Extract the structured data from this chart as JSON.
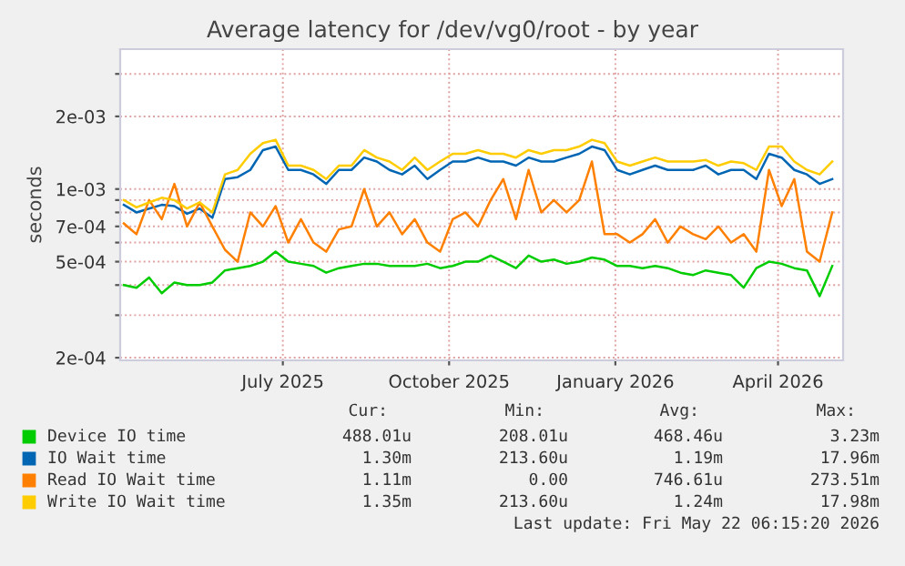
{
  "chart_data": {
    "type": "line",
    "title": "Average latency for /dev/vg0/root - by year",
    "ylabel": "seconds",
    "log": "y",
    "grid": true,
    "legend": "bottom",
    "xlim": [
      "2025-04-17",
      "2026-05-22"
    ],
    "xticks": [
      {
        "value": "2025-07-16",
        "label": "July 2025"
      },
      {
        "value": "2025-10-16",
        "label": "October 2025"
      },
      {
        "value": "2026-01-16",
        "label": "January 2026"
      },
      {
        "value": "2026-04-16",
        "label": "April 2026"
      }
    ],
    "ylim": [
      0.000195,
      0.0038
    ],
    "yticks": [
      {
        "value": 0.0002,
        "label": "2e-04"
      },
      {
        "value": 0.0003,
        "label": null
      },
      {
        "value": 0.0004,
        "label": null
      },
      {
        "value": 0.0005,
        "label": "5e-04"
      },
      {
        "value": 0.0006,
        "label": null
      },
      {
        "value": 0.0007,
        "label": "7e-04"
      },
      {
        "value": 0.0008,
        "label": null
      },
      {
        "value": 0.0009,
        "label": null
      },
      {
        "value": 0.001,
        "label": "1e-03"
      },
      {
        "value": 0.002,
        "label": "2e-03"
      },
      {
        "value": 0.003,
        "label": null
      }
    ],
    "x": [
      "2025-04-19",
      "2025-04-26",
      "2025-05-03",
      "2025-05-10",
      "2025-05-17",
      "2025-05-24",
      "2025-05-31",
      "2025-06-07",
      "2025-06-14",
      "2025-06-21",
      "2025-06-28",
      "2025-07-05",
      "2025-07-12",
      "2025-07-19",
      "2025-07-26",
      "2025-08-02",
      "2025-08-09",
      "2025-08-16",
      "2025-08-23",
      "2025-08-30",
      "2025-09-06",
      "2025-09-13",
      "2025-09-20",
      "2025-09-27",
      "2025-10-04",
      "2025-10-11",
      "2025-10-18",
      "2025-10-25",
      "2025-11-01",
      "2025-11-08",
      "2025-11-15",
      "2025-11-22",
      "2025-11-29",
      "2025-12-06",
      "2025-12-13",
      "2025-12-20",
      "2025-12-27",
      "2026-01-03",
      "2026-01-10",
      "2026-01-17",
      "2026-01-24",
      "2026-01-31",
      "2026-02-07",
      "2026-02-14",
      "2026-02-21",
      "2026-02-28",
      "2026-03-07",
      "2026-03-14",
      "2026-03-21",
      "2026-03-28",
      "2026-04-04",
      "2026-04-11",
      "2026-04-18",
      "2026-04-25",
      "2026-05-02",
      "2026-05-09",
      "2026-05-16"
    ],
    "series": [
      {
        "name": "Device IO time",
        "color": "#00cc00",
        "values": [
          0.0004,
          0.00039,
          0.00043,
          0.00037,
          0.00041,
          0.0004,
          0.0004,
          0.00041,
          0.00046,
          0.00047,
          0.00048,
          0.0005,
          0.00055,
          0.0005,
          0.00049,
          0.00048,
          0.00045,
          0.00047,
          0.00048,
          0.00049,
          0.00049,
          0.00048,
          0.00048,
          0.00048,
          0.00049,
          0.00047,
          0.00048,
          0.0005,
          0.0005,
          0.00053,
          0.0005,
          0.00047,
          0.00053,
          0.0005,
          0.00051,
          0.00049,
          0.0005,
          0.00052,
          0.00051,
          0.00048,
          0.00048,
          0.00047,
          0.00048,
          0.00047,
          0.00045,
          0.00044,
          0.00046,
          0.00045,
          0.00044,
          0.00039,
          0.00047,
          0.0005,
          0.00049,
          0.00047,
          0.00046,
          0.00036,
          0.00048
        ]
      },
      {
        "name": "IO Wait time",
        "color": "#0066b3",
        "values": [
          0.00086,
          0.0008,
          0.00083,
          0.00086,
          0.00085,
          0.00079,
          0.00083,
          0.00076,
          0.0011,
          0.00112,
          0.0012,
          0.00145,
          0.0015,
          0.0012,
          0.0012,
          0.00115,
          0.00105,
          0.0012,
          0.0012,
          0.00135,
          0.0013,
          0.0012,
          0.00115,
          0.00125,
          0.0011,
          0.0012,
          0.0013,
          0.0013,
          0.00135,
          0.0013,
          0.0013,
          0.00125,
          0.00135,
          0.0013,
          0.0013,
          0.00135,
          0.0014,
          0.0015,
          0.00145,
          0.0012,
          0.00115,
          0.0012,
          0.00125,
          0.0012,
          0.0012,
          0.0012,
          0.00125,
          0.00115,
          0.0012,
          0.0012,
          0.0011,
          0.0014,
          0.00135,
          0.0012,
          0.00115,
          0.00105,
          0.0011
        ]
      },
      {
        "name": "Read IO Wait time",
        "color": "#ff8000",
        "values": [
          0.00072,
          0.00065,
          0.0009,
          0.00075,
          0.00105,
          0.0007,
          0.00088,
          0.0007,
          0.00056,
          0.0005,
          0.0008,
          0.0007,
          0.00085,
          0.0006,
          0.00075,
          0.0006,
          0.00055,
          0.00068,
          0.0007,
          0.001,
          0.0007,
          0.0008,
          0.00065,
          0.00075,
          0.0006,
          0.00055,
          0.00075,
          0.0008,
          0.0007,
          0.0009,
          0.0011,
          0.00075,
          0.0012,
          0.0008,
          0.0009,
          0.0008,
          0.0009,
          0.0013,
          0.00065,
          0.00065,
          0.0006,
          0.00065,
          0.00075,
          0.0006,
          0.0007,
          0.00065,
          0.00062,
          0.0007,
          0.0006,
          0.00065,
          0.00055,
          0.0012,
          0.00085,
          0.0011,
          0.00055,
          0.0005,
          0.0008
        ]
      },
      {
        "name": "Write IO Wait time",
        "color": "#ffcc00",
        "values": [
          0.0009,
          0.00084,
          0.00088,
          0.00092,
          0.0009,
          0.00083,
          0.00088,
          0.0008,
          0.00115,
          0.0012,
          0.0014,
          0.00155,
          0.0016,
          0.00125,
          0.00125,
          0.0012,
          0.0011,
          0.00125,
          0.00125,
          0.00145,
          0.00135,
          0.0013,
          0.0012,
          0.00135,
          0.0012,
          0.0013,
          0.0014,
          0.0014,
          0.00145,
          0.0014,
          0.0014,
          0.00135,
          0.00145,
          0.0014,
          0.00145,
          0.00145,
          0.0015,
          0.0016,
          0.00155,
          0.0013,
          0.00125,
          0.0013,
          0.00135,
          0.0013,
          0.0013,
          0.0013,
          0.00132,
          0.00125,
          0.0013,
          0.00128,
          0.0012,
          0.0015,
          0.0015,
          0.0013,
          0.0012,
          0.00115,
          0.0013
        ]
      }
    ],
    "annotations": [
      "Cur:",
      "Min:",
      "Avg:",
      "Max:",
      "488.01u",
      "208.01u",
      "468.46u",
      "3.23m",
      "1.30m",
      "213.60u",
      "1.19m",
      "17.96m",
      "1.11m",
      "0.00",
      "746.61u",
      "273.51m",
      "1.35m",
      "213.60u",
      "1.24m",
      "17.98m",
      "Last update: Fri May 22 06:15:20 2026"
    ]
  }
}
